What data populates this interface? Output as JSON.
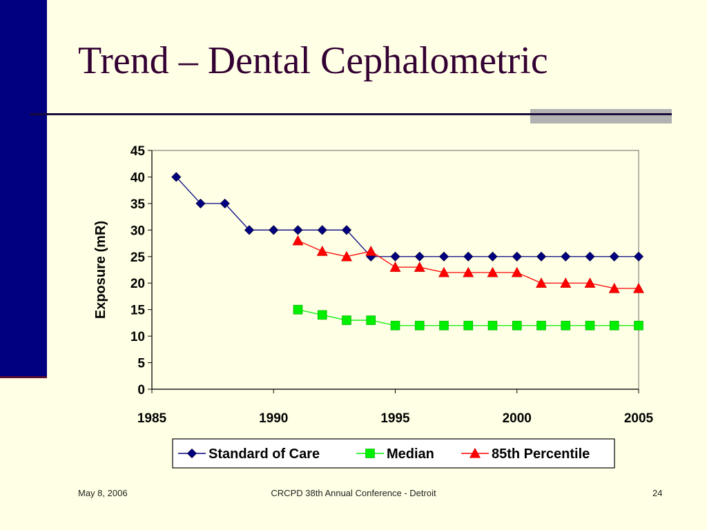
{
  "slide": {
    "title": "Trend – Dental Cephalometric",
    "footer_date": "May 8, 2006",
    "footer_center": "CRCPD 38th Annual Conference - Detroit",
    "footer_page": "24"
  },
  "colors": {
    "background": "#FFFFE5",
    "side_bar": "#000080",
    "title_text": "#330033",
    "accent_gray": "#B2B2B2"
  },
  "chart_data": {
    "type": "line",
    "title": "",
    "xlabel": "",
    "ylabel": "Exposure (mR)",
    "xlim": [
      1985,
      2005
    ],
    "ylim": [
      0,
      45
    ],
    "x_ticks": [
      "1985",
      "1990",
      "1995",
      "2000",
      "2005"
    ],
    "y_ticks": [
      "0",
      "5",
      "10",
      "15",
      "20",
      "25",
      "30",
      "35",
      "40",
      "45"
    ],
    "grid": false,
    "legend_position": "bottom",
    "series": [
      {
        "name": "Standard of Care",
        "color": "#000080",
        "marker": "diamond",
        "x": [
          1986,
          1987,
          1988,
          1989,
          1990,
          1991,
          1992,
          1993,
          1994,
          1995,
          1996,
          1997,
          1998,
          1999,
          2000,
          2001,
          2002,
          2003,
          2004,
          2005
        ],
        "y": [
          40,
          35,
          35,
          30,
          30,
          30,
          30,
          30,
          25,
          25,
          25,
          25,
          25,
          25,
          25,
          25,
          25,
          25,
          25,
          25
        ]
      },
      {
        "name": "Median",
        "color": "#00EE00",
        "marker": "square",
        "x": [
          1991,
          1992,
          1993,
          1994,
          1995,
          1996,
          1997,
          1998,
          1999,
          2000,
          2001,
          2002,
          2003,
          2004,
          2005
        ],
        "y": [
          15,
          14,
          13,
          13,
          12,
          12,
          12,
          12,
          12,
          12,
          12,
          12,
          12,
          12,
          12
        ]
      },
      {
        "name": "85th Percentile",
        "color": "#FF0000",
        "marker": "triangle",
        "x": [
          1991,
          1992,
          1993,
          1994,
          1995,
          1996,
          1997,
          1998,
          1999,
          2000,
          2001,
          2002,
          2003,
          2004,
          2005
        ],
        "y": [
          28,
          26,
          25,
          26,
          23,
          23,
          22,
          22,
          22,
          22,
          20,
          20,
          20,
          19,
          19
        ]
      }
    ]
  }
}
